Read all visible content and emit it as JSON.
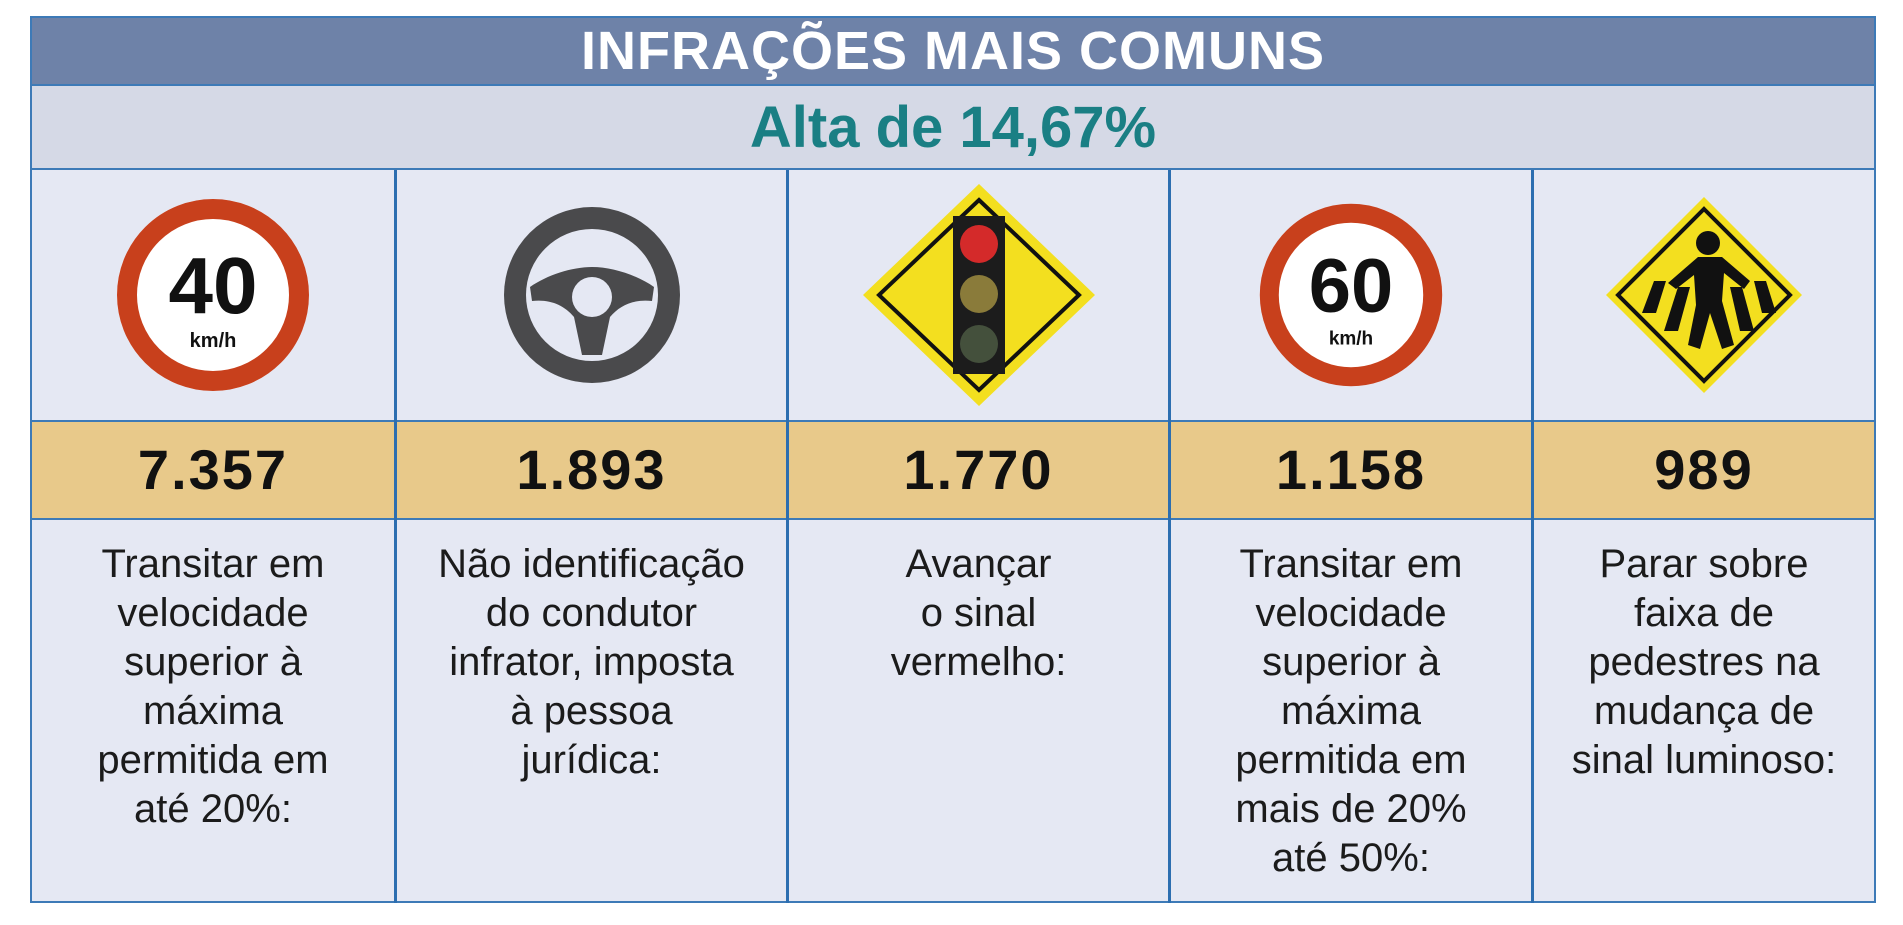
{
  "header": {
    "title": "INFRAÇÕES MAIS COMUNS",
    "subtitle": "Alta de 14,67%"
  },
  "colors": {
    "title_bg": "#6e82a8",
    "subtitle_text": "#1a7f84",
    "value_band": "#e8c98a",
    "border": "#2c6eb0"
  },
  "items": [
    {
      "icon": "speed-limit-40-icon",
      "sign_number": "40",
      "sign_unit": "km/h",
      "value": "7.357",
      "description": "Transitar em\nvelocidade\nsuperior à\nmáxima\npermitida em\naté 20%:"
    },
    {
      "icon": "steering-wheel-icon",
      "value": "1.893",
      "description": "Não identificação\ndo condutor\ninfrator, imposta\nà pessoa\njurídica:"
    },
    {
      "icon": "traffic-light-sign-icon",
      "value": "1.770",
      "description": "Avançar\no sinal\nvermelho:"
    },
    {
      "icon": "speed-limit-60-icon",
      "sign_number": "60",
      "sign_unit": "km/h",
      "value": "1.158",
      "description": "Transitar em\nvelocidade\nsuperior à\nmáxima\npermitida em\nmais de 20%\naté 50%:"
    },
    {
      "icon": "pedestrian-crossing-sign-icon",
      "value": "989",
      "description": "Parar sobre\nfaixa de\npedestres na\nmudança de\nsinal luminoso:"
    }
  ]
}
